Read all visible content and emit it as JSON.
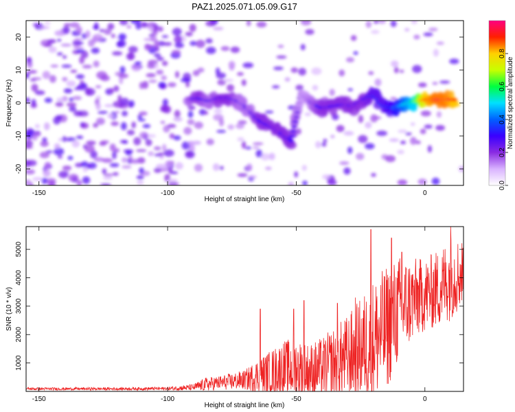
{
  "title": "PAZ1.2025.071.05.09.G17",
  "chart_data": [
    {
      "type": "heatmap",
      "xlabel": "Height of straight line (km)",
      "ylabel": "Frequency (Hz)",
      "xlim": [
        -155,
        15
      ],
      "ylim": [
        -25,
        25
      ],
      "xticks": [
        -150,
        -100,
        -50,
        0
      ],
      "yticks": [
        -20,
        -10,
        0,
        10,
        20
      ],
      "colorbar": {
        "label": "Normalized spectral amplitude",
        "range": [
          0,
          1
        ],
        "ticks": [
          0.0,
          0.2,
          0.4,
          0.6,
          0.8
        ],
        "colormap": [
          "#ffffff",
          "#d9b3ff",
          "#8a2be2",
          "#3a00ff",
          "#0060ff",
          "#00e0ff",
          "#00ff40",
          "#c8ff00",
          "#ffd000",
          "#ff2000",
          "#ff0080"
        ]
      },
      "signal_track": [
        {
          "x": -92,
          "freq": 1.0,
          "amp": 0.25
        },
        {
          "x": -88,
          "freq": 1.5,
          "amp": 0.3
        },
        {
          "x": -84,
          "freq": 0.5,
          "amp": 0.25
        },
        {
          "x": -80,
          "freq": 1.5,
          "amp": 0.3
        },
        {
          "x": -76,
          "freq": 1.5,
          "amp": 0.3
        },
        {
          "x": -72,
          "freq": 0.5,
          "amp": 0.25
        },
        {
          "x": -68,
          "freq": -2.5,
          "amp": 0.25
        },
        {
          "x": -64,
          "freq": -5.5,
          "amp": 0.3
        },
        {
          "x": -60,
          "freq": -7.0,
          "amp": 0.3
        },
        {
          "x": -56,
          "freq": -9.0,
          "amp": 0.3
        },
        {
          "x": -52,
          "freq": -11.5,
          "amp": 0.3
        },
        {
          "x": -48,
          "freq": 3.0,
          "amp": 0.2
        },
        {
          "x": -44,
          "freq": 0.0,
          "amp": 0.25
        },
        {
          "x": -40,
          "freq": -1.5,
          "amp": 0.3
        },
        {
          "x": -36,
          "freq": -1.0,
          "amp": 0.3
        },
        {
          "x": -32,
          "freq": -0.5,
          "amp": 0.3
        },
        {
          "x": -28,
          "freq": -1.0,
          "amp": 0.3
        },
        {
          "x": -24,
          "freq": 1.0,
          "amp": 0.3
        },
        {
          "x": -20,
          "freq": 2.5,
          "amp": 0.35
        },
        {
          "x": -16,
          "freq": -1.0,
          "amp": 0.35
        },
        {
          "x": -12,
          "freq": -1.5,
          "amp": 0.4
        },
        {
          "x": -8,
          "freq": -0.5,
          "amp": 0.5
        },
        {
          "x": -4,
          "freq": 0.5,
          "amp": 0.6
        },
        {
          "x": 0,
          "freq": 1.0,
          "amp": 0.9
        },
        {
          "x": 4,
          "freq": 1.0,
          "amp": 0.95
        },
        {
          "x": 8,
          "freq": 1.0,
          "amp": 0.95
        },
        {
          "x": 12,
          "freq": 1.0,
          "amp": 0.9
        }
      ]
    },
    {
      "type": "line",
      "xlabel": "Height of straight line (km)",
      "ylabel": "SNR (10 * v/v)",
      "xlim": [
        -155,
        15
      ],
      "ylim": [
        0,
        5800
      ],
      "xticks": [
        -150,
        -100,
        -50,
        0
      ],
      "yticks": [
        1000,
        2000,
        3000,
        4000,
        5000
      ],
      "color": "#ee2222",
      "envelope": [
        {
          "x": -155,
          "mean": 90,
          "spread": 50
        },
        {
          "x": -140,
          "mean": 90,
          "spread": 50
        },
        {
          "x": -120,
          "mean": 90,
          "spread": 50
        },
        {
          "x": -100,
          "mean": 100,
          "spread": 60
        },
        {
          "x": -90,
          "mean": 140,
          "spread": 120
        },
        {
          "x": -85,
          "mean": 250,
          "spread": 250
        },
        {
          "x": -80,
          "mean": 300,
          "spread": 250
        },
        {
          "x": -70,
          "mean": 400,
          "spread": 350
        },
        {
          "x": -65,
          "mean": 550,
          "spread": 600
        },
        {
          "x": -60,
          "mean": 650,
          "spread": 800
        },
        {
          "x": -55,
          "mean": 800,
          "spread": 1000
        },
        {
          "x": -50,
          "mean": 800,
          "spread": 1100
        },
        {
          "x": -45,
          "mean": 700,
          "spread": 1000
        },
        {
          "x": -40,
          "mean": 800,
          "spread": 1100
        },
        {
          "x": -35,
          "mean": 1000,
          "spread": 1300
        },
        {
          "x": -30,
          "mean": 1200,
          "spread": 1500
        },
        {
          "x": -25,
          "mean": 1500,
          "spread": 1800
        },
        {
          "x": -20,
          "mean": 1800,
          "spread": 2200
        },
        {
          "x": -15,
          "mean": 2200,
          "spread": 2200
        },
        {
          "x": -10,
          "mean": 2900,
          "spread": 1900
        },
        {
          "x": -5,
          "mean": 3200,
          "spread": 1500
        },
        {
          "x": 0,
          "mean": 3400,
          "spread": 1300
        },
        {
          "x": 5,
          "mean": 3600,
          "spread": 1400
        },
        {
          "x": 10,
          "mean": 4000,
          "spread": 1500
        },
        {
          "x": 15,
          "mean": 4200,
          "spread": 1200
        }
      ],
      "peaks": [
        {
          "x": -64,
          "y": 2900
        },
        {
          "x": -51,
          "y": 2900
        },
        {
          "x": -47,
          "y": 3200
        },
        {
          "x": -34,
          "y": 3100
        },
        {
          "x": -27,
          "y": 3300
        },
        {
          "x": -21,
          "y": 5700
        },
        {
          "x": -13,
          "y": 5400
        },
        {
          "x": -9,
          "y": 4900
        },
        {
          "x": 10,
          "y": 5800
        }
      ]
    }
  ]
}
